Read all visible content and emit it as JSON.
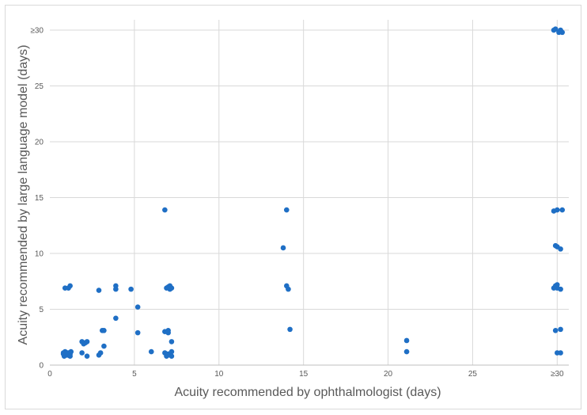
{
  "chart_data": {
    "type": "scatter",
    "title": "",
    "xlabel": "Acuity recommended by ophthalmologist (days)",
    "ylabel": "Acuity recommended by large language model (days)",
    "xlim": [
      0,
      30.5
    ],
    "ylim": [
      0,
      30.5
    ],
    "x_ticks": [
      {
        "value": 0,
        "label": "0"
      },
      {
        "value": 5,
        "label": "5"
      },
      {
        "value": 10,
        "label": "10"
      },
      {
        "value": 15,
        "label": "15"
      },
      {
        "value": 20,
        "label": "20"
      },
      {
        "value": 25,
        "label": "25"
      },
      {
        "value": 30,
        "label": "≥30"
      }
    ],
    "y_ticks": [
      {
        "value": 0,
        "label": "0"
      },
      {
        "value": 5,
        "label": "5"
      },
      {
        "value": 10,
        "label": "10"
      },
      {
        "value": 15,
        "label": "15"
      },
      {
        "value": 20,
        "label": "20"
      },
      {
        "value": 25,
        "label": "25"
      },
      {
        "value": 30,
        "label": "≥30"
      }
    ],
    "grid": {
      "vertical": true,
      "horizontal": true
    },
    "marker_color": "#1f6fc5",
    "grid_color": "#d9d9d9",
    "series": [
      {
        "points": [
          [
            0.8,
            1.0
          ],
          [
            0.9,
            1.2
          ],
          [
            1.0,
            0.9
          ],
          [
            1.1,
            1.1
          ],
          [
            1.2,
            1.0
          ],
          [
            0.85,
            0.8
          ],
          [
            1.15,
            0.85
          ],
          [
            0.95,
            1.15
          ],
          [
            1.05,
            0.95
          ],
          [
            1.25,
            1.2
          ],
          [
            0.8,
            1.1
          ],
          [
            1.2,
            0.8
          ],
          [
            0.9,
            6.9
          ],
          [
            1.1,
            6.9
          ],
          [
            1.2,
            7.1
          ],
          [
            1.9,
            2.1
          ],
          [
            2.0,
            1.9
          ],
          [
            2.1,
            2.0
          ],
          [
            2.2,
            2.1
          ],
          [
            1.9,
            1.1
          ],
          [
            2.2,
            0.8
          ],
          [
            2.9,
            0.9
          ],
          [
            3.0,
            1.1
          ],
          [
            3.1,
            3.1
          ],
          [
            3.2,
            3.1
          ],
          [
            3.2,
            1.7
          ],
          [
            2.9,
            6.7
          ],
          [
            3.9,
            7.1
          ],
          [
            3.9,
            6.8
          ],
          [
            3.9,
            4.2
          ],
          [
            4.8,
            6.8
          ],
          [
            5.2,
            5.2
          ],
          [
            5.2,
            2.9
          ],
          [
            6.0,
            1.2
          ],
          [
            6.8,
            13.9
          ],
          [
            6.9,
            6.9
          ],
          [
            7.1,
            7.1
          ],
          [
            7.1,
            6.8
          ],
          [
            7.2,
            6.9
          ],
          [
            7.0,
            7.0
          ],
          [
            6.8,
            3.0
          ],
          [
            7.0,
            3.1
          ],
          [
            7.0,
            2.9
          ],
          [
            7.2,
            2.1
          ],
          [
            6.8,
            1.1
          ],
          [
            6.9,
            0.8
          ],
          [
            7.0,
            1.0
          ],
          [
            7.1,
            0.9
          ],
          [
            7.2,
            1.2
          ],
          [
            7.2,
            0.8
          ],
          [
            13.8,
            10.5
          ],
          [
            14.0,
            13.9
          ],
          [
            14.0,
            7.1
          ],
          [
            14.1,
            6.8
          ],
          [
            14.2,
            3.2
          ],
          [
            21.1,
            2.2
          ],
          [
            21.1,
            1.2
          ],
          [
            29.8,
            30.0
          ],
          [
            29.9,
            30.1
          ],
          [
            30.2,
            30.0
          ],
          [
            30.1,
            29.8
          ],
          [
            30.3,
            29.8
          ],
          [
            29.8,
            13.8
          ],
          [
            30.0,
            13.9
          ],
          [
            30.3,
            13.9
          ],
          [
            29.9,
            10.7
          ],
          [
            30.0,
            10.6
          ],
          [
            30.2,
            10.4
          ],
          [
            29.9,
            7.1
          ],
          [
            30.0,
            7.2
          ],
          [
            30.0,
            6.9
          ],
          [
            30.2,
            6.8
          ],
          [
            29.8,
            6.9
          ],
          [
            29.9,
            3.1
          ],
          [
            30.2,
            3.2
          ],
          [
            30.0,
            1.1
          ],
          [
            30.2,
            1.1
          ]
        ]
      }
    ]
  }
}
